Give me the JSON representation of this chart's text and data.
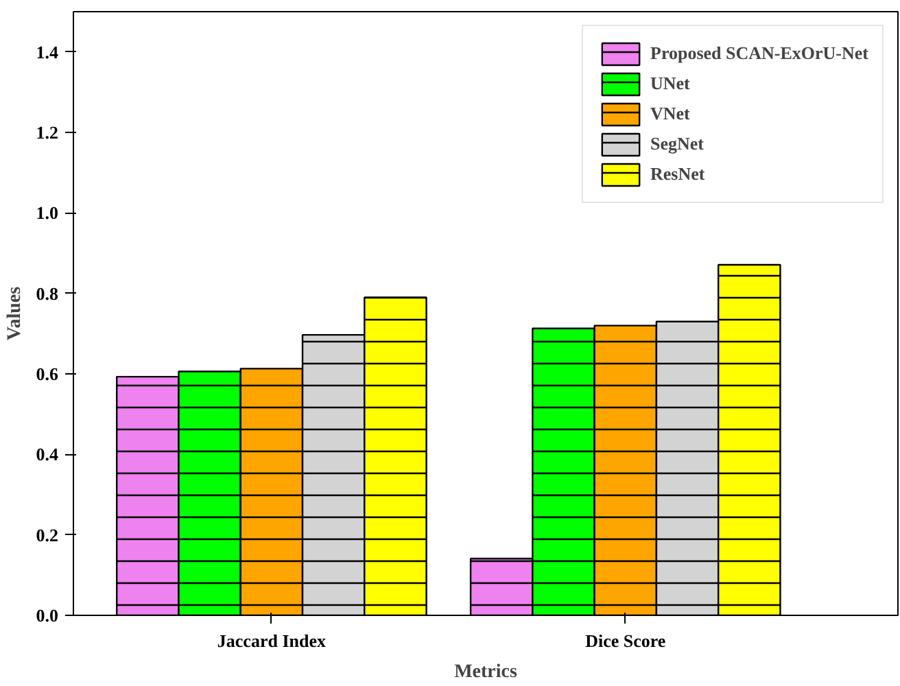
{
  "chart_data": {
    "type": "bar",
    "xlabel": "Metrics",
    "ylabel": "Values",
    "categories": [
      "Jaccard Index",
      "Dice Score"
    ],
    "series": [
      {
        "name": "Proposed SCAN-ExOrU-Net",
        "color": "#ee82ee",
        "values": [
          0.593,
          0.141
        ]
      },
      {
        "name": "UNet",
        "color": "#00ff00",
        "values": [
          0.606,
          0.713
        ]
      },
      {
        "name": "VNet",
        "color": "#ffa500",
        "values": [
          0.613,
          0.72
        ]
      },
      {
        "name": "SegNet",
        "color": "#d3d3d3",
        "values": [
          0.697,
          0.73
        ]
      },
      {
        "name": "ResNet",
        "color": "#ffff00",
        "values": [
          0.79,
          0.871
        ]
      }
    ],
    "ylim": [
      0,
      1.5
    ],
    "yticks": [
      {
        "value": 0,
        "label": "0.0"
      },
      {
        "value": 0.2,
        "label": "0.2"
      },
      {
        "value": 0.4,
        "label": "0.4"
      },
      {
        "value": 0.6,
        "label": "0.6"
      },
      {
        "value": 0.8,
        "label": "0.8"
      },
      {
        "value": 1.0,
        "label": "1.0"
      },
      {
        "value": 1.2,
        "label": "1.2"
      },
      {
        "value": 1.4,
        "label": "1.4"
      }
    ],
    "grid": false,
    "legend": "top right"
  }
}
